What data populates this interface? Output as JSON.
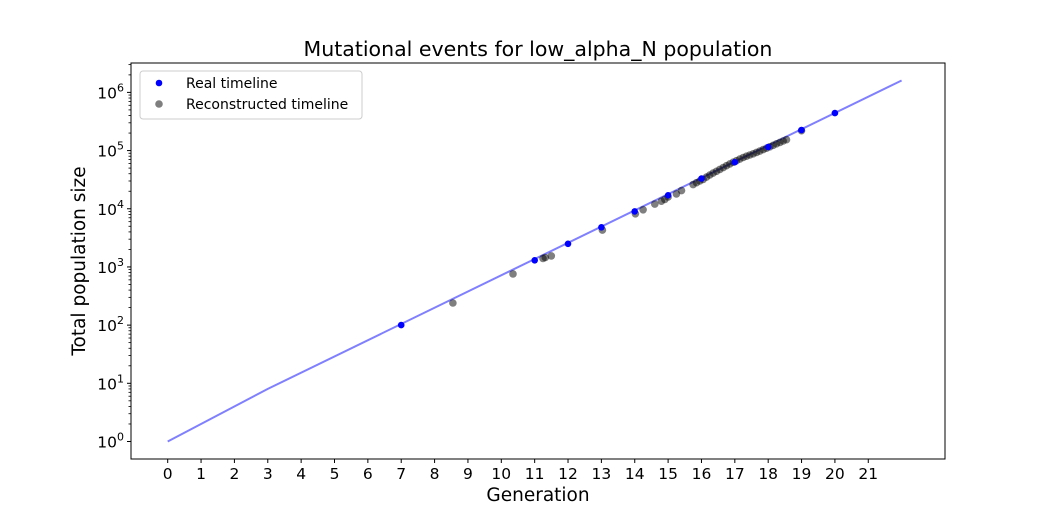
{
  "chart_data": {
    "type": "scatter",
    "title": "Mutational events for low_alpha_N population",
    "xlabel": "Generation",
    "ylabel": "Total population size",
    "xlim": [
      -1.1,
      23.3
    ],
    "y_scale": "log",
    "ylim": [
      0.5,
      3200000
    ],
    "x_ticks": [
      0,
      1,
      2,
      3,
      4,
      5,
      6,
      7,
      8,
      9,
      10,
      11,
      12,
      13,
      14,
      15,
      16,
      17,
      18,
      19,
      20,
      21
    ],
    "y_ticks": [
      {
        "value": 1,
        "base": "10",
        "exp": "0"
      },
      {
        "value": 10,
        "base": "10",
        "exp": "1"
      },
      {
        "value": 100,
        "base": "10",
        "exp": "2"
      },
      {
        "value": 1000,
        "base": "10",
        "exp": "3"
      },
      {
        "value": 10000,
        "base": "10",
        "exp": "4"
      },
      {
        "value": 100000,
        "base": "10",
        "exp": "5"
      },
      {
        "value": 1000000,
        "base": "10",
        "exp": "6"
      }
    ],
    "grid": false,
    "legend": {
      "position": "top-left",
      "entries": [
        {
          "label": "Real timeline",
          "color": "#0000ff"
        },
        {
          "label": "Reconstructed timeline",
          "color": "#808080"
        }
      ]
    },
    "series": [
      {
        "name": "growth curve",
        "kind": "line",
        "color": "#8080ff",
        "x": [
          0,
          3,
          22
        ],
        "y": [
          1,
          8,
          1600000
        ]
      },
      {
        "name": "Real timeline",
        "kind": "scatter",
        "color": "#0000ff",
        "x": [
          7,
          11,
          12,
          13,
          14,
          15,
          16,
          17,
          18,
          19,
          20
        ],
        "y": [
          100,
          1300,
          2500,
          4800,
          9000,
          17000,
          33000,
          63000,
          115000,
          225000,
          440000
        ]
      },
      {
        "name": "Reconstructed timeline",
        "kind": "scatter",
        "color": "#808080",
        "x": [
          8.55,
          10.35,
          11.25,
          11.32,
          11.5,
          13.03,
          14.02,
          14.25,
          14.6,
          14.8,
          14.9,
          15.0,
          15.25,
          15.4,
          15.75,
          15.85,
          15.95,
          16.05,
          16.15,
          16.25,
          16.35,
          16.45,
          16.55,
          16.65,
          16.75,
          16.85,
          16.95,
          17.05,
          17.15,
          17.25,
          17.35,
          17.45,
          17.55,
          17.65,
          17.75,
          17.85,
          17.95,
          18.05,
          18.15,
          18.25,
          18.35,
          18.45,
          18.55,
          19.0
        ],
        "y": [
          240,
          760,
          1400,
          1450,
          1550,
          4300,
          8200,
          9600,
          12000,
          13500,
          14500,
          16000,
          18000,
          20500,
          26000,
          28000,
          30000,
          32000,
          35000,
          38000,
          41000,
          44000,
          47500,
          51000,
          55000,
          59000,
          63000,
          67000,
          71500,
          76000,
          80000,
          84000,
          88000,
          93000,
          98000,
          104000,
          110000,
          116000,
          123000,
          131000,
          138000,
          146000,
          154000,
          220000
        ]
      }
    ]
  }
}
